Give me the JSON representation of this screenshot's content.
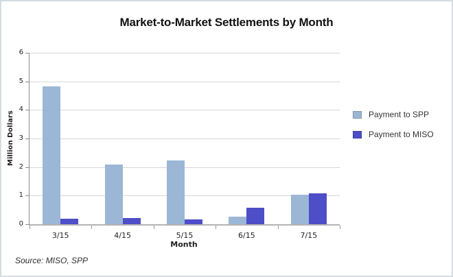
{
  "chart_data": {
    "type": "bar",
    "title": "Market-to-Market Settlements by Month",
    "xlabel": "Month",
    "ylabel": "Million  Dollars",
    "categories": [
      "3/15",
      "4/15",
      "5/15",
      "6/15",
      "7/15"
    ],
    "series": [
      {
        "name": "Payment to SPP",
        "color": "#9cb7d5",
        "values": [
          4.82,
          2.08,
          2.24,
          0.27,
          1.03
        ]
      },
      {
        "name": "Payment to MISO",
        "color": "#4e4ec8",
        "values": [
          0.2,
          0.21,
          0.16,
          0.58,
          1.07
        ]
      }
    ],
    "ylim": [
      0,
      6
    ],
    "ytick_step": 1,
    "grid": true,
    "legend_position": "right"
  },
  "footer": {
    "source": "Source: MISO, SPP"
  }
}
